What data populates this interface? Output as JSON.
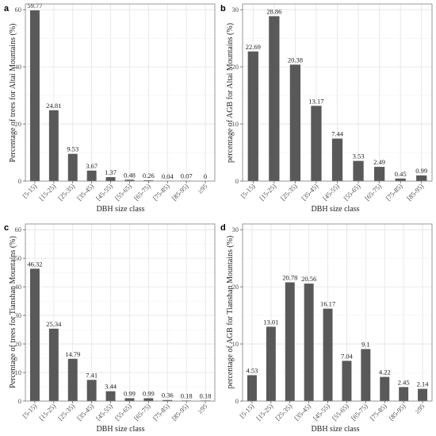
{
  "colors": {
    "bar": "#595959",
    "background": "#ffffff",
    "grid": "#e3e3e3"
  },
  "chart_data": [
    {
      "panel": "a",
      "type": "bar",
      "categories": [
        "[5-15)",
        "[15-25)",
        "[25-35)",
        "[35-45)",
        "[45-55)",
        "[55-65)",
        "[65-75)",
        "[75-85)",
        "[85-95)",
        "≥95"
      ],
      "values": [
        59.77,
        24.81,
        9.53,
        3.67,
        1.37,
        0.48,
        0.26,
        0.04,
        0.07,
        0
      ],
      "value_labels": [
        "59.77",
        "24.81",
        "9.53",
        "3.67",
        "1.37",
        "0.48",
        "0.26",
        "0.04",
        "0.07",
        "0"
      ],
      "xlabel": "DBH size class",
      "ylabel": "Percentage of trees for Altai Mountains (%)",
      "ylim": [
        0,
        62
      ],
      "yticks": [
        0,
        20,
        40,
        60
      ],
      "grid": true
    },
    {
      "panel": "b",
      "type": "bar",
      "categories": [
        "[5-15)",
        "[15-25)",
        "[25-35)",
        "[35-45)",
        "[45-55)",
        "[55-65)",
        "[65-75)",
        "[75-85)",
        "[85-95)"
      ],
      "values": [
        22.69,
        28.86,
        20.38,
        13.17,
        7.44,
        3.53,
        2.49,
        0.45,
        0.99
      ],
      "value_labels": [
        "22.69",
        "28.86",
        "20.38",
        "13.17",
        "7.44",
        "3.53",
        "2.49",
        "0.45",
        "0.99"
      ],
      "xlabel": "DBH size class",
      "ylabel": "percentage of AGB for Altai Mountains (%)",
      "ylim": [
        0,
        31
      ],
      "yticks": [
        0,
        10,
        20,
        30
      ],
      "grid": true
    },
    {
      "panel": "c",
      "type": "bar",
      "categories": [
        "[5-15)",
        "[15-25)",
        "[25-35)",
        "[35-45)",
        "[45-55)",
        "[55-65)",
        "[65-75)",
        "[75-85)",
        "[85-95)",
        "≥95"
      ],
      "values": [
        46.32,
        25.34,
        14.79,
        7.41,
        3.44,
        0.99,
        0.99,
        0.36,
        0.18,
        0.18
      ],
      "value_labels": [
        "46.32",
        "25.34",
        "14.79",
        "7.41",
        "3.44",
        "0.99",
        "0.99",
        "0.36",
        "0.18",
        "0.18"
      ],
      "xlabel": "DBH size class",
      "ylabel": "Percentage of trees for Tianshan Mountains (%)",
      "ylim": [
        0,
        62
      ],
      "yticks": [
        0,
        10,
        20,
        30,
        40,
        50,
        60
      ],
      "grid": true
    },
    {
      "panel": "d",
      "type": "bar",
      "categories": [
        "[5-15)",
        "[15-25)",
        "[25-35)",
        "[35-45)",
        "[45-55)",
        "[55-65)",
        "[65-75)",
        "[75-85)",
        "[85-95)",
        "≥95"
      ],
      "values": [
        4.53,
        13.01,
        20.78,
        20.56,
        16.17,
        7.04,
        9.1,
        4.22,
        2.45,
        2.14
      ],
      "value_labels": [
        "4.53",
        "13.01",
        "20.78",
        "20.56",
        "16.17",
        "7.04",
        "9.1",
        "4.22",
        "2.45",
        "2.14"
      ],
      "xlabel": "DBH size class",
      "ylabel": "percentage of AGB for Tianshan Mountains (%)",
      "ylim": [
        0,
        31
      ],
      "yticks": [
        0,
        10,
        20,
        30
      ],
      "grid": true
    }
  ]
}
